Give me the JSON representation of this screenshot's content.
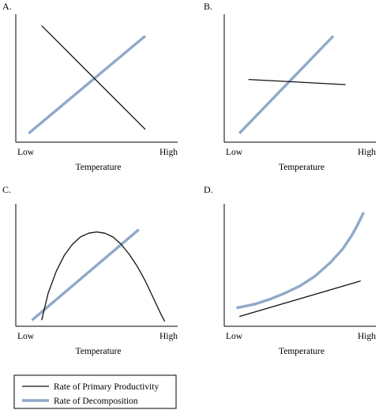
{
  "chart_data": [
    {
      "panel": "A.",
      "type": "line",
      "xlabel": "Temperature",
      "ylabel": "",
      "x_ticks": [
        "Low",
        "High"
      ],
      "xlim": [
        0,
        1
      ],
      "ylim": [
        0,
        1
      ],
      "grid": false,
      "series": [
        {
          "name": "Rate of Primary Productivity",
          "x": [
            0.16,
            0.8
          ],
          "y": [
            0.91,
            0.1
          ]
        },
        {
          "name": "Rate of Decomposition",
          "x": [
            0.08,
            0.8
          ],
          "y": [
            0.07,
            0.83
          ]
        }
      ]
    },
    {
      "panel": "B.",
      "type": "line",
      "xlabel": "Temperature",
      "ylabel": "",
      "x_ticks": [
        "Low",
        "High"
      ],
      "xlim": [
        0,
        1
      ],
      "ylim": [
        0,
        1
      ],
      "grid": false,
      "series": [
        {
          "name": "Rate of Primary Productivity",
          "x": [
            0.16,
            0.8
          ],
          "y": [
            0.49,
            0.45
          ]
        },
        {
          "name": "Rate of Decomposition",
          "x": [
            0.1,
            0.72
          ],
          "y": [
            0.07,
            0.83
          ]
        }
      ]
    },
    {
      "panel": "C.",
      "type": "line",
      "xlabel": "Temperature",
      "ylabel": "",
      "x_ticks": [
        "Low",
        "High"
      ],
      "xlim": [
        0,
        1
      ],
      "ylim": [
        0,
        1
      ],
      "grid": false,
      "series": [
        {
          "name": "Rate of Primary Productivity",
          "x": [
            0.16,
            0.2,
            0.25,
            0.3,
            0.35,
            0.4,
            0.45,
            0.5,
            0.55,
            0.6,
            0.65,
            0.7,
            0.75,
            0.8,
            0.85,
            0.9,
            0.92
          ],
          "y": [
            0.05,
            0.27,
            0.45,
            0.58,
            0.67,
            0.73,
            0.76,
            0.77,
            0.76,
            0.73,
            0.67,
            0.59,
            0.49,
            0.37,
            0.23,
            0.09,
            0.04
          ]
        },
        {
          "name": "Rate of Decomposition",
          "x": [
            0.1,
            0.76
          ],
          "y": [
            0.05,
            0.79
          ]
        }
      ]
    },
    {
      "panel": "D.",
      "type": "line",
      "xlabel": "Temperature",
      "ylabel": "",
      "x_ticks": [
        "Low",
        "High"
      ],
      "xlim": [
        0,
        1
      ],
      "ylim": [
        0,
        1
      ],
      "grid": false,
      "series": [
        {
          "name": "Rate of Primary Productivity",
          "x": [
            0.1,
            0.9
          ],
          "y": [
            0.08,
            0.37
          ]
        },
        {
          "name": "Rate of Decomposition",
          "x": [
            0.08,
            0.2,
            0.3,
            0.4,
            0.5,
            0.6,
            0.7,
            0.78,
            0.84,
            0.88,
            0.92
          ],
          "y": [
            0.15,
            0.18,
            0.22,
            0.27,
            0.33,
            0.41,
            0.52,
            0.63,
            0.74,
            0.83,
            0.93
          ]
        }
      ]
    }
  ],
  "legend": {
    "position": "bottom-left",
    "items": [
      {
        "label": "Rate of Primary Productivity",
        "color": "#111111",
        "width": "thin"
      },
      {
        "label": "Rate of Decomposition",
        "color": "#8fa9c9",
        "width": "thick"
      }
    ]
  },
  "colors": {
    "productivity": "#111111",
    "decomposition": "#8fa9c9",
    "axis": "#000000"
  }
}
